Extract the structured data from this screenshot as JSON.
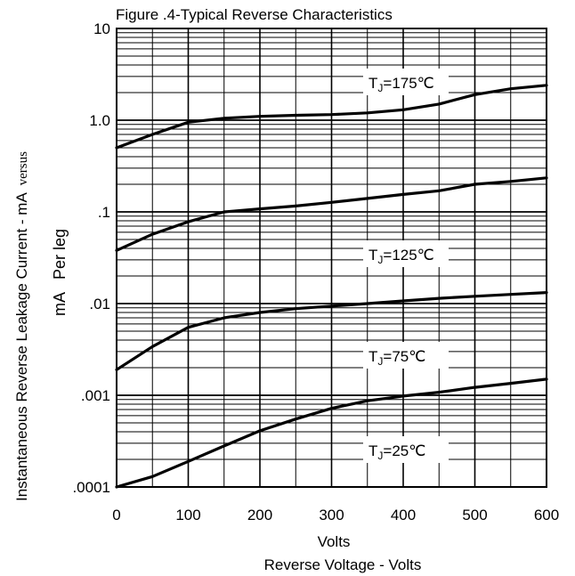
{
  "chart_data": {
    "type": "line",
    "title": "Figure .4-Typical Reverse Characteristics",
    "xlabel": "Volts",
    "xlabel2": "Reverse Voltage - Volts",
    "ylabel": "Instantaneous Reverse Leakage Current - mA",
    "ylabel_suffix": "versus",
    "ylabel2": "mA   Per leg",
    "xlim": [
      0,
      600
    ],
    "ylim": [
      0.0001,
      10
    ],
    "yscale": "log",
    "grid": true,
    "x_ticks": [
      0,
      100,
      200,
      300,
      400,
      500,
      600
    ],
    "x_tick_labels": [
      "0",
      "100",
      "200",
      "300",
      "400",
      "500",
      "600"
    ],
    "y_ticks": [
      10,
      1,
      0.1,
      0.01,
      0.001,
      0.0001
    ],
    "y_tick_labels": [
      "10",
      "1.0",
      ".1",
      ".01",
      ".001",
      ".0001"
    ],
    "series": [
      {
        "name": "TJ=175℃",
        "label_sub": "J",
        "label_rest": "=175℃",
        "x": [
          0,
          50,
          100,
          150,
          200,
          250,
          300,
          350,
          400,
          450,
          500,
          550,
          600
        ],
        "y": [
          0.5,
          0.7,
          0.95,
          1.05,
          1.1,
          1.13,
          1.15,
          1.2,
          1.3,
          1.5,
          1.9,
          2.2,
          2.4
        ]
      },
      {
        "name": "TJ=125℃",
        "label_sub": "J",
        "label_rest": "=125℃",
        "x": [
          0,
          50,
          100,
          150,
          200,
          250,
          300,
          350,
          400,
          450,
          500,
          550,
          600
        ],
        "y": [
          0.038,
          0.057,
          0.078,
          0.1,
          0.108,
          0.116,
          0.127,
          0.14,
          0.155,
          0.17,
          0.2,
          0.215,
          0.235
        ]
      },
      {
        "name": "TJ=75℃",
        "label_sub": "J",
        "label_rest": "=75℃",
        "x": [
          0,
          50,
          100,
          150,
          200,
          250,
          300,
          350,
          400,
          450,
          500,
          550,
          600
        ],
        "y": [
          0.0019,
          0.0034,
          0.0055,
          0.007,
          0.008,
          0.0088,
          0.0094,
          0.01,
          0.0107,
          0.0114,
          0.012,
          0.0126,
          0.0132
        ]
      },
      {
        "name": "TJ=25℃",
        "label_sub": "J",
        "label_rest": "=25℃",
        "x": [
          0,
          50,
          100,
          150,
          200,
          250,
          300,
          350,
          400,
          450,
          500,
          550,
          600
        ],
        "y": [
          0.0001,
          0.00013,
          0.00019,
          0.00028,
          0.00041,
          0.00055,
          0.00072,
          0.00087,
          0.00098,
          0.00108,
          0.00122,
          0.00135,
          0.0015
        ]
      }
    ]
  }
}
